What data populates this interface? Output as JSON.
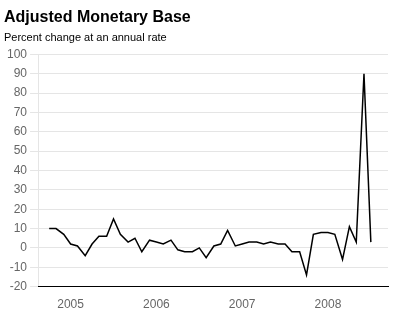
{
  "chart_data": {
    "type": "line",
    "title": "Adjusted Monetary Base",
    "subtitle": "Percent change at an annual rate",
    "color": "#000000",
    "x": [
      2004.75,
      2004.83,
      2004.92,
      2005.0,
      2005.08,
      2005.17,
      2005.25,
      2005.33,
      2005.42,
      2005.5,
      2005.58,
      2005.67,
      2005.75,
      2005.83,
      2005.92,
      2006.0,
      2006.08,
      2006.17,
      2006.25,
      2006.33,
      2006.42,
      2006.5,
      2006.58,
      2006.67,
      2006.75,
      2006.83,
      2006.92,
      2007.0,
      2007.08,
      2007.17,
      2007.25,
      2007.33,
      2007.42,
      2007.5,
      2007.58,
      2007.67,
      2007.75,
      2007.83,
      2007.92,
      2008.0,
      2008.08,
      2008.17,
      2008.25,
      2008.33,
      2008.42,
      2008.5
    ],
    "values": [
      10,
      10,
      7,
      2,
      1,
      -4,
      2,
      6,
      6,
      15,
      7,
      3,
      5,
      -2,
      4,
      3,
      2,
      4,
      -1,
      -2,
      -2,
      0,
      -5,
      1,
      2,
      9,
      1,
      2,
      3,
      3,
      2,
      3,
      2,
      2,
      -2,
      -2,
      -14,
      7,
      8,
      8,
      7,
      -6,
      11,
      3,
      90,
      3
    ],
    "xlim": [
      2004.62,
      2008.7
    ],
    "xticks": [
      2005,
      2006,
      2007,
      2008
    ],
    "ylim": [
      -20,
      100
    ],
    "yticks": [
      -20,
      -10,
      0,
      10,
      20,
      30,
      40,
      50,
      60,
      70,
      80,
      90,
      100
    ],
    "grid": "y"
  }
}
